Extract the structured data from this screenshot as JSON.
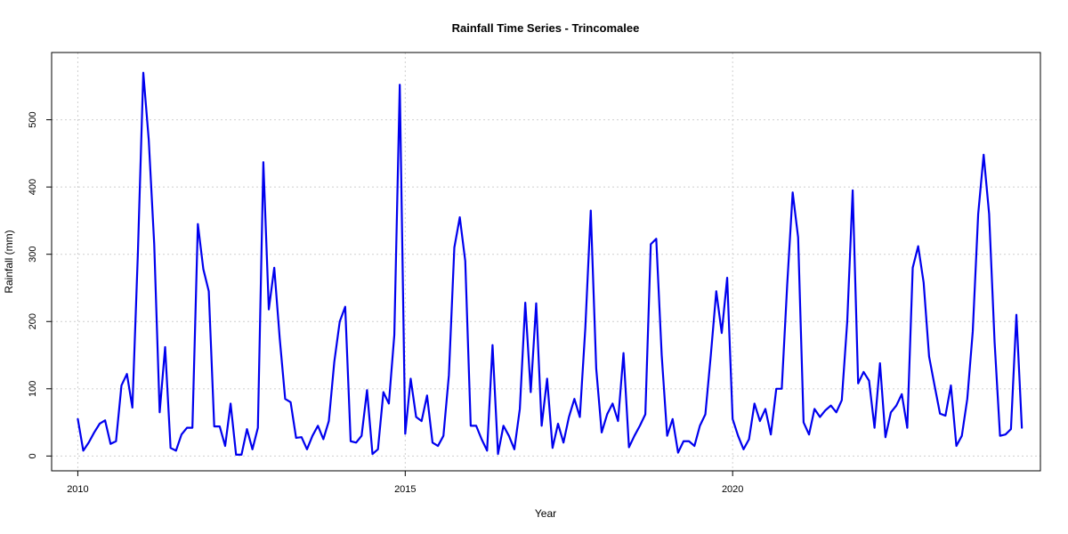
{
  "chart_data": {
    "type": "line",
    "title": "Rainfall Time Series - Trincomalee",
    "xlabel": "Year",
    "ylabel": "Rainfall (mm)",
    "xlim": [
      2009.6,
      2024.7
    ],
    "ylim": [
      -22,
      600
    ],
    "x_ticks": [
      2010,
      2015,
      2020
    ],
    "y_ticks": [
      0,
      100,
      200,
      300,
      400,
      500
    ],
    "grid": true,
    "series": [
      {
        "color": "#0000ee",
        "x_start": 2010.0,
        "x_step_years": 0.08333333,
        "values": [
          55,
          8,
          20,
          35,
          48,
          53,
          18,
          22,
          105,
          122,
          72,
          300,
          570,
          470,
          315,
          65,
          162,
          12,
          8,
          32,
          42,
          42,
          345,
          278,
          245,
          44,
          44,
          15,
          78,
          2,
          2,
          40,
          10,
          42,
          437,
          218,
          280,
          175,
          85,
          80,
          27,
          28,
          10,
          30,
          45,
          25,
          52,
          140,
          200,
          222,
          22,
          20,
          30,
          98,
          3,
          10,
          95,
          78,
          180,
          552,
          33,
          115,
          58,
          52,
          90,
          20,
          15,
          30,
          120,
          310,
          355,
          290,
          45,
          45,
          25,
          8,
          165,
          3,
          45,
          30,
          10,
          70,
          228,
          95,
          227,
          45,
          115,
          12,
          48,
          20,
          58,
          85,
          58,
          190,
          365,
          130,
          35,
          62,
          78,
          52,
          153,
          13,
          30,
          45,
          62,
          315,
          323,
          150,
          30,
          55,
          5,
          22,
          22,
          15,
          45,
          62,
          150,
          245,
          183,
          265,
          55,
          30,
          10,
          25,
          78,
          52,
          70,
          32,
          100,
          100,
          255,
          392,
          325,
          50,
          32,
          70,
          58,
          68,
          75,
          65,
          83,
          200,
          395,
          108,
          125,
          112,
          42,
          138,
          28,
          65,
          75,
          92,
          42,
          280,
          312,
          258,
          148,
          105,
          63,
          60,
          105,
          15,
          30,
          85,
          185,
          360,
          448,
          360,
          170,
          30,
          32,
          40,
          210,
          42
        ]
      }
    ]
  }
}
